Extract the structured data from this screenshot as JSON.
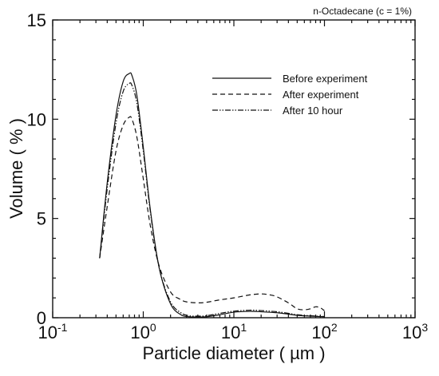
{
  "chart_data": {
    "type": "line",
    "annotation": "n-Octadecane (c = 1%)",
    "xlabel": "Particle diameter ( µm )",
    "ylabel": "Volume ( % )",
    "xscale": "log",
    "xlim": [
      0.1,
      1000
    ],
    "ylim": [
      0,
      15
    ],
    "x_ticks": [
      {
        "value": 0.1,
        "base": "10",
        "exp": "-1"
      },
      {
        "value": 1,
        "base": "10",
        "exp": "0"
      },
      {
        "value": 10,
        "base": "10",
        "exp": "1"
      },
      {
        "value": 100,
        "base": "10",
        "exp": "2"
      },
      {
        "value": 1000,
        "base": "10",
        "exp": "3"
      }
    ],
    "y_ticks": [
      {
        "value": 0,
        "label": "0"
      },
      {
        "value": 5,
        "label": "5"
      },
      {
        "value": 10,
        "label": "10"
      },
      {
        "value": 15,
        "label": "15"
      }
    ],
    "legend_position": "top-right",
    "series": [
      {
        "name": "Before experiment",
        "dash": "solid",
        "x": [
          0.33,
          0.4,
          0.5,
          0.6,
          0.7,
          0.75,
          0.85,
          1.0,
          1.2,
          1.5,
          2.0,
          2.6,
          3.2,
          4.0,
          5.0,
          7.0,
          10,
          15,
          20,
          30,
          40,
          50,
          70,
          100
        ],
        "y": [
          3.0,
          6.8,
          10.2,
          11.9,
          12.3,
          12.2,
          11.2,
          8.6,
          5.4,
          2.5,
          0.7,
          0.15,
          0.05,
          0.04,
          0.05,
          0.15,
          0.28,
          0.32,
          0.3,
          0.25,
          0.18,
          0.12,
          0.08,
          0.05
        ]
      },
      {
        "name": "After experiment",
        "dash": "dashed",
        "x": [
          0.33,
          0.4,
          0.5,
          0.6,
          0.7,
          0.75,
          0.85,
          1.0,
          1.2,
          1.5,
          2.0,
          2.5,
          3.0,
          4.0,
          5.0,
          7.0,
          10,
          15,
          20,
          25,
          30,
          40,
          50,
          60,
          70,
          80,
          90,
          100
        ],
        "y": [
          3.0,
          5.6,
          8.4,
          9.7,
          10.1,
          10.0,
          9.1,
          7.0,
          4.6,
          2.6,
          1.3,
          0.95,
          0.8,
          0.75,
          0.78,
          0.9,
          1.0,
          1.15,
          1.2,
          1.15,
          1.05,
          0.75,
          0.45,
          0.4,
          0.45,
          0.55,
          0.5,
          0.35
        ]
      },
      {
        "name": "After 10 hour",
        "dash": "dash-dot",
        "x": [
          0.33,
          0.4,
          0.5,
          0.6,
          0.7,
          0.75,
          0.85,
          1.0,
          1.2,
          1.5,
          2.0,
          2.6,
          3.2,
          4.0,
          5.0,
          7.0,
          10,
          15,
          20,
          30,
          40,
          50,
          70,
          100
        ],
        "y": [
          3.0,
          6.5,
          9.8,
          11.4,
          11.8,
          11.7,
          10.8,
          8.4,
          5.3,
          2.5,
          0.8,
          0.25,
          0.1,
          0.08,
          0.1,
          0.22,
          0.33,
          0.38,
          0.36,
          0.3,
          0.22,
          0.15,
          0.1,
          0.06
        ]
      }
    ]
  }
}
